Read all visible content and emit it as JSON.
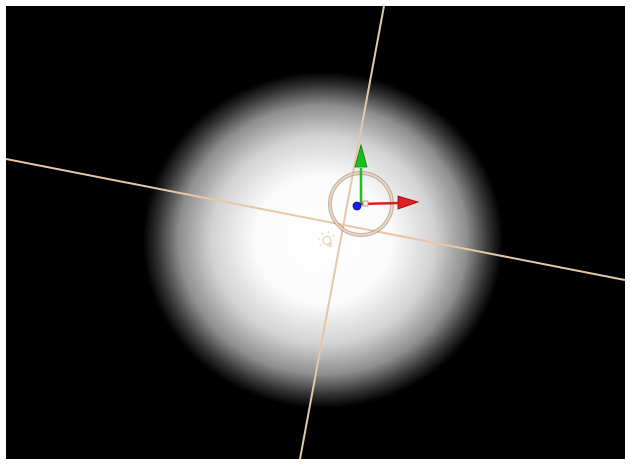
{
  "viewport": {
    "background_color": "#000000",
    "light_color": "#ffffff",
    "guide_line_color": "#e8c9a8",
    "gizmo": {
      "x_axis_color": "#e02020",
      "y_axis_color": "#20c020",
      "z_axis_color": "#1a1aff",
      "rotation_ring_color": "#e8c9a8"
    },
    "light_icon": "light-bulb-icon"
  }
}
